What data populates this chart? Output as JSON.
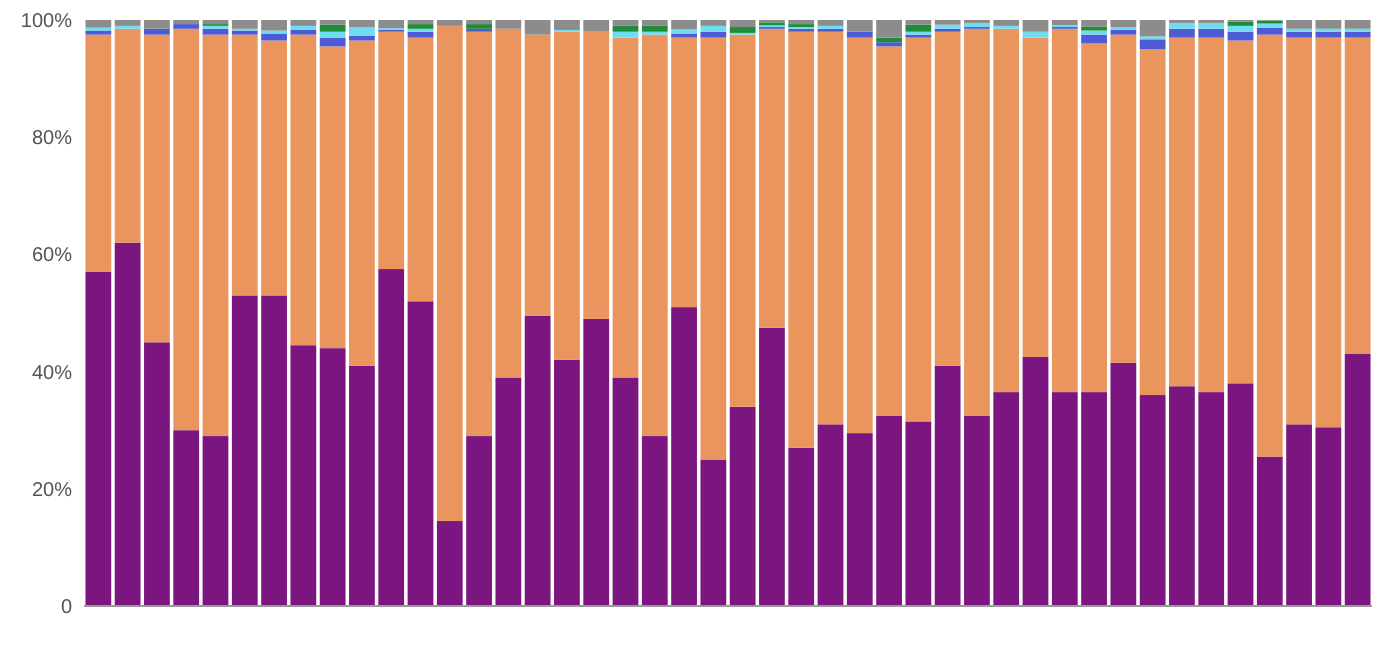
{
  "chart_data": {
    "type": "bar",
    "stacked": true,
    "categories": [
      null,
      null,
      null,
      null,
      null,
      null,
      null,
      null,
      null,
      null,
      null,
      null,
      null,
      null,
      null,
      null,
      null,
      null,
      null,
      null,
      null,
      null,
      null,
      null,
      null,
      null,
      null,
      null,
      null,
      null,
      null,
      null,
      null,
      null,
      null,
      null,
      null,
      null,
      null,
      null,
      null,
      null,
      null,
      null
    ],
    "series": [
      {
        "color": "#7b1680",
        "values": [
          57,
          62,
          45,
          30,
          29,
          53,
          53,
          44.5,
          44,
          41,
          57.5,
          52,
          14.5,
          29,
          39,
          49.5,
          42,
          49,
          39,
          29,
          51,
          25,
          34,
          47.5,
          27,
          31,
          29.5,
          32.5,
          31.5,
          41,
          32.5,
          36.5,
          42.5,
          36.5,
          36.5,
          41.5,
          36,
          37.5,
          36.5,
          38,
          25.5,
          31,
          30.5,
          43
        ]
      },
      {
        "color": "#ea955e",
        "values": [
          40.5,
          36.5,
          52.5,
          68.5,
          68.5,
          44.5,
          43.5,
          53,
          51.5,
          55.5,
          40.5,
          45,
          84.5,
          69,
          59.5,
          48,
          56,
          49,
          58,
          68.5,
          46,
          72,
          63.5,
          51,
          71,
          67,
          67.5,
          63,
          65.5,
          57,
          66,
          62,
          54.5,
          62,
          59.5,
          56,
          59,
          59.5,
          60.5,
          58.5,
          72,
          66,
          66.5,
          54
        ]
      },
      {
        "color": "#4f5bd5",
        "values": [
          0.7,
          0,
          1,
          0.8,
          1,
          0.7,
          1.2,
          0.8,
          1.5,
          0.8,
          0.3,
          1,
          0,
          0.5,
          0,
          0,
          0,
          0,
          0,
          0,
          0.7,
          1,
          0,
          0.3,
          0.5,
          0.5,
          1,
          0.7,
          0.5,
          0.5,
          0.3,
          0,
          0,
          0.3,
          1.5,
          0.8,
          1.7,
          1.5,
          1.5,
          1.5,
          1.2,
          1,
          1,
          1
        ]
      },
      {
        "color": "#6fdcf0",
        "values": [
          0.5,
          0.5,
          0,
          0,
          0.5,
          0.3,
          0.5,
          0.7,
          1,
          1.5,
          0.3,
          0.5,
          0,
          0,
          0,
          0,
          0.3,
          0,
          1,
          0.5,
          0.7,
          1,
          0.3,
          0.3,
          0.3,
          0.5,
          0,
          0,
          0.5,
          0.7,
          0.7,
          0.5,
          1,
          0.3,
          0.7,
          0.5,
          0.5,
          1,
          1,
          1,
          0.7,
          0.5,
          0.5,
          0.5
        ]
      },
      {
        "color": "#1e8c3a",
        "values": [
          0,
          0,
          0,
          0,
          0.3,
          0,
          0,
          0,
          1.2,
          0,
          0,
          0.8,
          0,
          0.8,
          0,
          0,
          0,
          0,
          1,
          1,
          0,
          0,
          1,
          0.5,
          0.5,
          0,
          0,
          0.8,
          1.2,
          0,
          0,
          0,
          0,
          0,
          0.7,
          0,
          0,
          0,
          0,
          0.7,
          0.5,
          0,
          0,
          0
        ]
      },
      {
        "color": "#8c8c8c",
        "values": [
          1.3,
          1,
          1.5,
          0.7,
          0.7,
          1.5,
          1.8,
          1,
          0.8,
          1.2,
          1.4,
          0.7,
          1,
          0.7,
          1.5,
          2.5,
          1.7,
          2,
          1,
          1,
          1.6,
          1,
          1.2,
          0.4,
          0.7,
          1,
          2,
          3,
          0.8,
          0.8,
          0.5,
          1,
          2,
          0.9,
          1.1,
          1.2,
          2.8,
          0.5,
          0.5,
          0.3,
          0.1,
          1.5,
          1.5,
          1.5
        ]
      }
    ],
    "ylim": [
      0,
      100
    ],
    "yticks": [
      {
        "value": 0,
        "label": "0"
      },
      {
        "value": 20,
        "label": "20%"
      },
      {
        "value": 40,
        "label": "40%"
      },
      {
        "value": 60,
        "label": "60%"
      },
      {
        "value": 80,
        "label": "80%"
      },
      {
        "value": 100,
        "label": "100%"
      }
    ],
    "grid": false
  }
}
